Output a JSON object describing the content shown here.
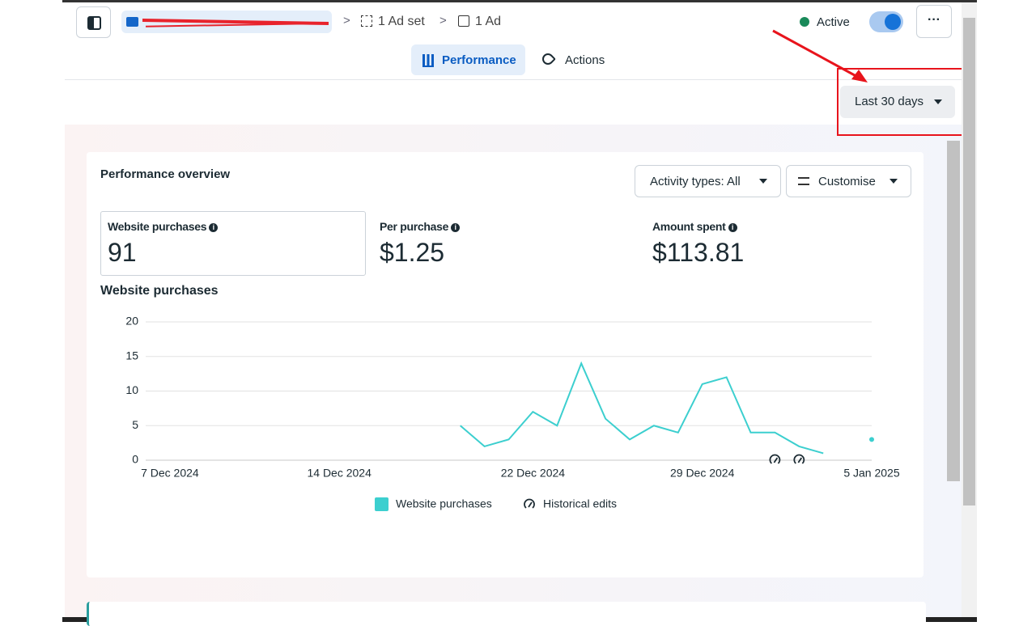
{
  "header": {
    "breadcrumb": [
      "1 Ad set",
      "1 Ad"
    ],
    "status": "Active",
    "tabs": [
      "Performance",
      "Actions"
    ],
    "date_range": "Last 30 days"
  },
  "overview": {
    "title": "Performance overview",
    "filters": [
      "Activity types: All",
      "Customise"
    ],
    "metrics": [
      {
        "label": "Website purchases",
        "value": "91"
      },
      {
        "label": "Per purchase",
        "value": "$1.25"
      },
      {
        "label": "Amount spent",
        "value": "$113.81"
      }
    ]
  },
  "chart_data": {
    "type": "line",
    "title": "Website purchases",
    "x": [
      "2024-12-19",
      "2024-12-20",
      "2024-12-21",
      "2024-12-22",
      "2024-12-23",
      "2024-12-24",
      "2024-12-25",
      "2024-12-26",
      "2024-12-27",
      "2024-12-28",
      "2024-12-29",
      "2024-12-30",
      "2024-12-31",
      "2025-01-01",
      "2025-01-02",
      "2025-01-03",
      "2025-01-04",
      "2025-01-05"
    ],
    "series": [
      {
        "name": "Website purchases",
        "color": "#3ccfcf",
        "values": [
          5,
          2,
          3,
          7,
          5,
          14,
          6,
          3,
          5,
          4,
          11,
          12,
          4,
          4,
          2,
          1,
          null,
          3
        ]
      }
    ],
    "xlim": [
      "2024-12-06",
      "2025-01-05"
    ],
    "xticks": [
      {
        "value": "2024-12-07",
        "label": "7 Dec 2024"
      },
      {
        "value": "2024-12-14",
        "label": "14 Dec 2024"
      },
      {
        "value": "2024-12-22",
        "label": "22 Dec 2024"
      },
      {
        "value": "2024-12-29",
        "label": "29 Dec 2024"
      },
      {
        "value": "2025-01-05",
        "label": "5 Jan 2025"
      }
    ],
    "ylim": [
      0,
      20
    ],
    "yticks": [
      0,
      5,
      10,
      15,
      20
    ],
    "grid": true,
    "legend": "bottom",
    "historical_edits": {
      "name": "Historical edits",
      "x": [
        "2025-01-01",
        "2025-01-02"
      ]
    }
  }
}
